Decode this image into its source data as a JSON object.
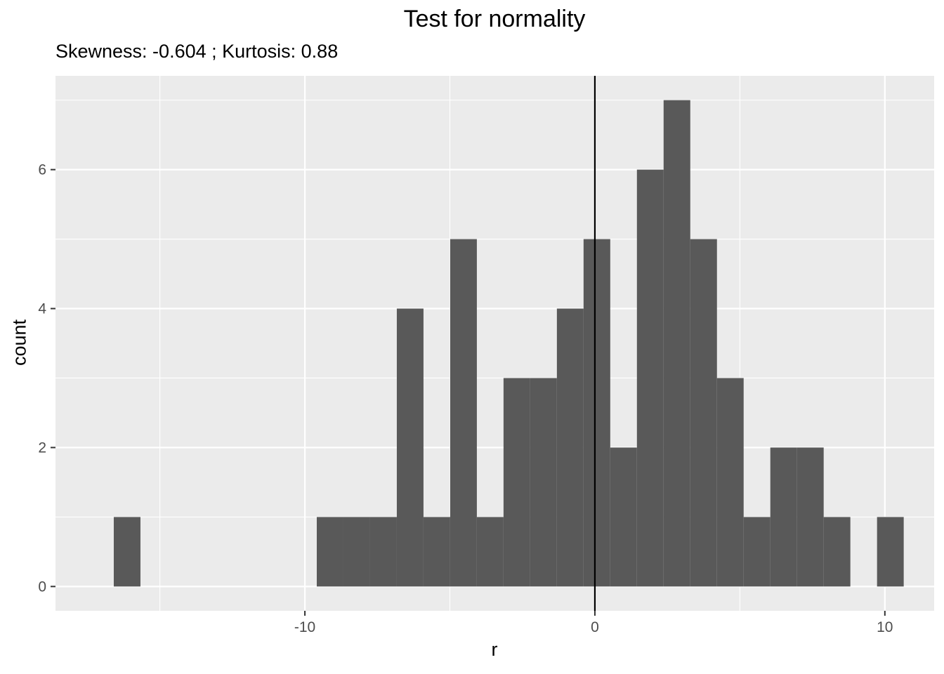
{
  "chart_data": {
    "type": "bar",
    "title": "Test for normality",
    "subtitle": "Skewness: -0.604 ; Kurtosis: 0.88",
    "xlabel": "r",
    "ylabel": "count",
    "xlim": [
      -18.6,
      11.7
    ],
    "ylim": [
      -0.35,
      7.35
    ],
    "x_ticks": [
      -10,
      0,
      10
    ],
    "x_tick_labels": [
      "-10",
      "0",
      "10"
    ],
    "y_ticks": [
      0,
      2,
      4,
      6
    ],
    "y_tick_labels": [
      "0",
      "2",
      "4",
      "6"
    ],
    "grid": true,
    "reference_line_x": 0,
    "bin_width": 0.92,
    "bins": [
      {
        "x_start": -16.59,
        "count": 1
      },
      {
        "x_start": -9.59,
        "count": 1
      },
      {
        "x_start": -8.67,
        "count": 1
      },
      {
        "x_start": -7.75,
        "count": 1
      },
      {
        "x_start": -6.83,
        "count": 4
      },
      {
        "x_start": -5.91,
        "count": 1
      },
      {
        "x_start": -4.99,
        "count": 5
      },
      {
        "x_start": -4.07,
        "count": 1
      },
      {
        "x_start": -3.15,
        "count": 3
      },
      {
        "x_start": -2.23,
        "count": 3
      },
      {
        "x_start": -1.31,
        "count": 4
      },
      {
        "x_start": -0.39,
        "count": 5
      },
      {
        "x_start": 0.53,
        "count": 2
      },
      {
        "x_start": 1.45,
        "count": 6
      },
      {
        "x_start": 2.37,
        "count": 7
      },
      {
        "x_start": 3.29,
        "count": 5
      },
      {
        "x_start": 4.21,
        "count": 3
      },
      {
        "x_start": 5.13,
        "count": 1
      },
      {
        "x_start": 6.05,
        "count": 2
      },
      {
        "x_start": 6.97,
        "count": 2
      },
      {
        "x_start": 7.89,
        "count": 1
      },
      {
        "x_start": 9.73,
        "count": 1
      }
    ],
    "colors": {
      "panel": "#ebebeb",
      "grid": "#ffffff",
      "bar": "#595959",
      "reference_line": "#000000",
      "tick_text": "#4d4d4d",
      "tick_mark": "#333333"
    }
  }
}
